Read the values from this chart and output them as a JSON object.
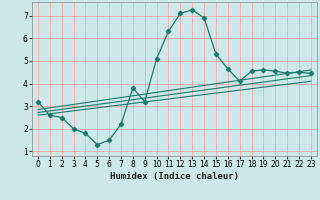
{
  "xlabel": "Humidex (Indice chaleur)",
  "bg_color": "#cce8e8",
  "grid_color": "#ff9999",
  "line_color": "#1a7a6e",
  "xlim": [
    -0.5,
    23.5
  ],
  "ylim": [
    0.8,
    7.6
  ],
  "xticks": [
    0,
    1,
    2,
    3,
    4,
    5,
    6,
    7,
    8,
    9,
    10,
    11,
    12,
    13,
    14,
    15,
    16,
    17,
    18,
    19,
    20,
    21,
    22,
    23
  ],
  "yticks": [
    1,
    2,
    3,
    4,
    5,
    6,
    7
  ],
  "main_x": [
    0,
    1,
    2,
    3,
    4,
    5,
    6,
    7,
    8,
    9,
    10,
    11,
    12,
    13,
    14,
    15,
    16,
    17,
    18,
    19,
    20,
    21,
    22,
    23
  ],
  "main_y": [
    3.2,
    2.6,
    2.5,
    2.0,
    1.8,
    1.3,
    1.5,
    2.2,
    3.8,
    3.2,
    5.1,
    6.3,
    7.1,
    7.25,
    6.9,
    5.3,
    4.65,
    4.1,
    4.55,
    4.6,
    4.55,
    4.45,
    4.5,
    4.45
  ],
  "line1_x": [
    0,
    23
  ],
  "line1_y": [
    2.85,
    4.6
  ],
  "line2_x": [
    0,
    23
  ],
  "line2_y": [
    2.72,
    4.35
  ],
  "line3_x": [
    0,
    23
  ],
  "line3_y": [
    2.6,
    4.1
  ]
}
